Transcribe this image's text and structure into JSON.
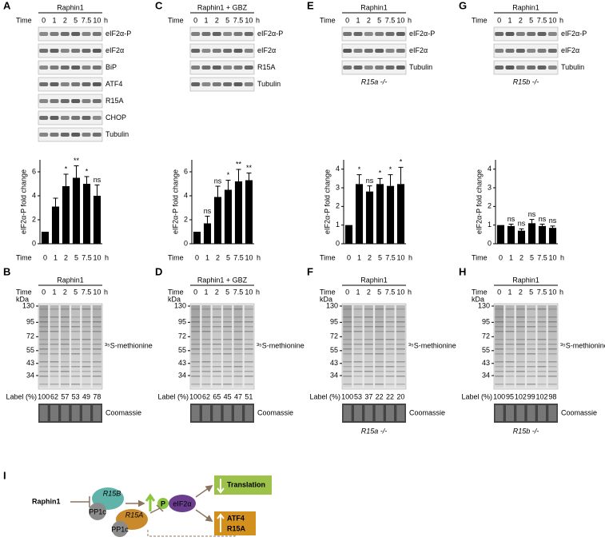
{
  "blots": [
    {
      "letter": "A",
      "title": "Raphin1",
      "time_label": "Time",
      "times": [
        "0",
        "1",
        "2",
        "5",
        "7.5",
        "10"
      ],
      "unit": "h",
      "bands": [
        "eIF2α-P",
        "eIF2α",
        "BiP",
        "ATF4",
        "R15A",
        "CHOP",
        "Tubulin"
      ]
    },
    {
      "letter": "C",
      "title": "Raphin1 + GBZ",
      "time_label": "Time",
      "times": [
        "0",
        "1",
        "2",
        "5",
        "7.5",
        "10"
      ],
      "unit": "h",
      "bands": [
        "eIF2α-P",
        "eIF2α",
        "R15A",
        "Tubulin"
      ]
    },
    {
      "letter": "E",
      "title": "Raphin1",
      "time_label": "Time",
      "times": [
        "0",
        "1",
        "2",
        "5",
        "7.5",
        "10"
      ],
      "unit": "h",
      "bands": [
        "eIF2α-P",
        "eIF2α",
        "Tubulin"
      ],
      "genotype": "R15a -/-"
    },
    {
      "letter": "G",
      "title": "Raphin1",
      "time_label": "Time",
      "times": [
        "0",
        "1",
        "2",
        "5",
        "7.5",
        "10"
      ],
      "unit": "h",
      "bands": [
        "eIF2α-P",
        "eIF2α",
        "Tubulin"
      ],
      "genotype": "R15b -/-"
    }
  ],
  "chart_data": [
    {
      "type": "bar",
      "ylabel": "eIF2α-P fold change",
      "xlabel": "Time",
      "x_unit": "h",
      "categories": [
        "0",
        "1",
        "2",
        "5",
        "7.5",
        "10"
      ],
      "values": [
        1,
        3.1,
        4.8,
        5.5,
        5.0,
        4.0
      ],
      "errors": [
        0,
        0.7,
        1.0,
        1.0,
        0.6,
        0.9
      ],
      "annotations": [
        null,
        null,
        "*",
        "**",
        "*",
        "ns"
      ],
      "ylim": [
        0,
        7
      ],
      "yticks": [
        0,
        2,
        4,
        6
      ],
      "color": "#000000"
    },
    {
      "type": "bar",
      "ylabel": "eIF2α-P fold change",
      "xlabel": "Time",
      "x_unit": "h",
      "categories": [
        "0",
        "1",
        "2",
        "5",
        "7.5",
        "10"
      ],
      "values": [
        1,
        1.7,
        3.9,
        4.5,
        5.2,
        5.3
      ],
      "errors": [
        0,
        0.6,
        0.9,
        0.8,
        1.0,
        0.6
      ],
      "annotations": [
        null,
        "ns",
        "ns",
        "*",
        "**",
        "**"
      ],
      "ylim": [
        0,
        7
      ],
      "yticks": [
        0,
        2,
        4,
        6
      ],
      "color": "#000000"
    },
    {
      "type": "bar",
      "ylabel": "eIF2α-P fold change",
      "xlabel": "Time",
      "x_unit": "h",
      "categories": [
        "0",
        "1",
        "2",
        "5",
        "7.5",
        "10"
      ],
      "values": [
        1,
        3.2,
        2.8,
        3.2,
        3.1,
        3.2
      ],
      "errors": [
        0,
        0.5,
        0.3,
        0.3,
        0.6,
        0.9
      ],
      "annotations": [
        null,
        "*",
        "ns",
        "*",
        "*",
        "*"
      ],
      "ylim": [
        0,
        4.5
      ],
      "yticks": [
        0,
        1,
        2,
        3,
        4
      ],
      "color": "#000000"
    },
    {
      "type": "bar",
      "ylabel": "eIF2α-P fold change",
      "xlabel": "Time",
      "x_unit": "h",
      "categories": [
        "0",
        "1",
        "2",
        "5",
        "7.5",
        "10"
      ],
      "values": [
        1,
        0.95,
        0.7,
        1.1,
        0.95,
        0.85
      ],
      "errors": [
        0,
        0.1,
        0.1,
        0.2,
        0.1,
        0.1
      ],
      "annotations": [
        null,
        "ns",
        "ns",
        "ns",
        "ns",
        "ns"
      ],
      "ylim": [
        0,
        4.5
      ],
      "yticks": [
        0,
        1,
        2,
        3,
        4
      ],
      "color": "#000000"
    }
  ],
  "gels": [
    {
      "letter": "B",
      "title": "Raphin1",
      "time_label": "Time",
      "kda_label": "kDa",
      "times": [
        "0",
        "1",
        "2",
        "5",
        "7.5",
        "10"
      ],
      "unit": "h",
      "markers": [
        130,
        95,
        72,
        55,
        43,
        34
      ],
      "probe": "³⁵S-methionine",
      "label_title": "Label (%)",
      "labels": [
        100,
        62,
        57,
        53,
        49,
        78
      ],
      "stain": "Coomassie"
    },
    {
      "letter": "D",
      "title": "Raphin1 + GBZ",
      "time_label": "Time",
      "kda_label": "kDa",
      "times": [
        "0",
        "1",
        "2",
        "5",
        "7.5",
        "10"
      ],
      "unit": "h",
      "markers": [
        130,
        95,
        72,
        55,
        43,
        34
      ],
      "probe": "³⁵S-methionine",
      "label_title": "Label (%)",
      "labels": [
        100,
        62,
        65,
        45,
        47,
        51
      ],
      "stain": "Coomassie"
    },
    {
      "letter": "F",
      "title": "Raphin1",
      "time_label": "Time",
      "kda_label": "kDa",
      "times": [
        "0",
        "1",
        "2",
        "5",
        "7.5",
        "10"
      ],
      "unit": "h",
      "markers": [
        130,
        95,
        72,
        55,
        43,
        34
      ],
      "probe": "³⁵S-methionine",
      "label_title": "Label (%)",
      "labels": [
        100,
        53,
        37,
        22,
        22,
        20
      ],
      "stain": "Coomassie",
      "genotype": "R15a -/-"
    },
    {
      "letter": "H",
      "title": "Raphin1",
      "time_label": "Time",
      "kda_label": "kDa",
      "times": [
        "0",
        "1",
        "2",
        "5",
        "7.5",
        "10"
      ],
      "unit": "h",
      "markers": [
        130,
        95,
        72,
        55,
        43,
        34
      ],
      "probe": "³⁵S-methionine",
      "label_title": "Label (%)",
      "labels": [
        100,
        95,
        102,
        99,
        102,
        98
      ],
      "stain": "Coomassie",
      "genotype": "R15b -/-"
    }
  ],
  "diagram": {
    "letter": "I",
    "labels": [
      "Raphin1",
      "R15B",
      "PP1c",
      "P",
      "eIF2α",
      "Translation",
      "ATF4",
      "R15A",
      "R15A",
      "PP1c"
    ]
  }
}
